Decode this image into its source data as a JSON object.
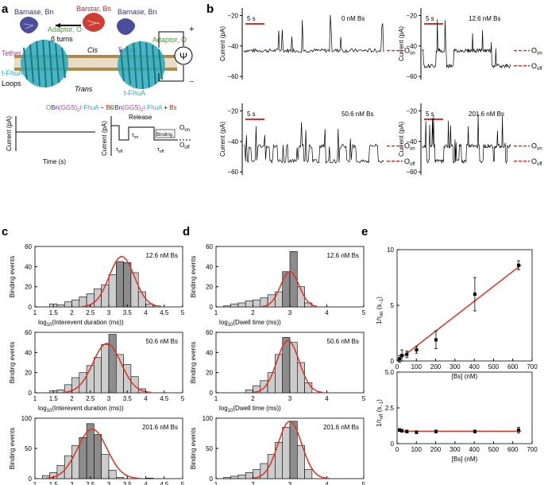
{
  "panel_labels": [
    "a",
    "b",
    "c",
    "d",
    "e"
  ],
  "schematic": {
    "barnase_left": "Barnase, Bn",
    "barstar": "Barstar, Bs",
    "barnase_right": "Barnase, Bn",
    "adaptor_left": "Adaptor, O",
    "adaptor_right": "Adaptor, O",
    "beta_turns": "β turns",
    "tether_left": "Tether",
    "tether_right": "Tether",
    "cis": "Cis",
    "trans": "Trans",
    "tfhua_left": "t-FhuA",
    "tfhua_right": "t-FhuA",
    "loops": "Loops",
    "psi": "Ψ",
    "plus": "+",
    "minus": "−"
  },
  "cartoons": {
    "left_title": [
      "OBn(GGS)",
      "2",
      "t-FhuA − Bs"
    ],
    "right_title": [
      "OBn(GGS)",
      "2",
      "t-FhuA + Bs"
    ],
    "ylabel": "Current (pA)",
    "xlabel": "Time (s)",
    "release": "Release",
    "binding": "Binding",
    "tau_on": [
      "τ",
      "on"
    ],
    "tau_off": [
      "τ",
      "off"
    ],
    "o_on": [
      "O",
      "on"
    ],
    "o_off": [
      "O",
      "off"
    ]
  },
  "colors": {
    "barnase": "#2b2e8c",
    "barstar": "#c8281e",
    "adaptor": "#4a9a2e",
    "tether": "#b23aa8",
    "fhua": "#2aa9b8",
    "fit": "#e03020",
    "bar_light": "#cccccc",
    "bar_dark": "#8c8c8c",
    "membrane": "#b08a4a"
  },
  "chart_data": [
    {
      "id": "b_traces",
      "type": "line",
      "ylabel": "Current (pA)",
      "yticks": [
        -20,
        -40,
        -60
      ],
      "ylim": [
        -62,
        -15
      ],
      "scalebar": "5 s",
      "levels": {
        "O_on": -43,
        "O_off": -53
      },
      "level_labels": [
        [
          "O",
          "on"
        ],
        [
          "O",
          "off"
        ]
      ],
      "traces": [
        {
          "label": "0 nM Bs",
          "base": -43,
          "states": 1
        },
        {
          "label": "12.6 nM Bs",
          "base": -43,
          "states": 2
        },
        {
          "label": "50.6 nM Bs",
          "base": -43,
          "states": 2
        },
        {
          "label": "201.6 nM Bs",
          "base": -43,
          "states": 2
        }
      ]
    },
    {
      "id": "c_hist",
      "type": "bar",
      "ylabel": "Binding events",
      "xlabel": [
        "log",
        "10",
        "(Interevent duration (ms))"
      ],
      "xlim": [
        1,
        5
      ],
      "xticks": [
        1,
        1.5,
        2,
        2.5,
        3,
        3.5,
        4,
        4.5,
        5
      ],
      "bin_width": 0.2,
      "panels": [
        {
          "label": "12.6 nM Bs",
          "ylim": [
            0,
            60
          ],
          "yticks": [
            0,
            20,
            40,
            60
          ],
          "bin_starts": [
            1.4,
            1.6,
            1.8,
            2.0,
            2.2,
            2.4,
            2.6,
            2.8,
            3.0,
            3.2,
            3.4,
            3.6,
            3.8,
            4.0,
            4.2
          ],
          "counts": [
            3,
            2,
            5,
            7,
            10,
            13,
            18,
            22,
            32,
            45,
            44,
            34,
            15,
            3,
            1
          ],
          "dark": [
            9,
            10
          ],
          "fit": {
            "mu": 3.35,
            "sigma": 0.34,
            "amp": 50
          }
        },
        {
          "label": "50.6 nM Bs",
          "ylim": [
            0,
            60
          ],
          "yticks": [
            0,
            20,
            40,
            60
          ],
          "bin_starts": [
            1.4,
            1.6,
            1.8,
            2.0,
            2.2,
            2.4,
            2.6,
            2.8,
            3.0,
            3.2,
            3.4,
            3.6,
            3.8
          ],
          "counts": [
            2,
            3,
            8,
            15,
            20,
            27,
            35,
            48,
            58,
            38,
            28,
            16,
            4
          ],
          "dark": [
            8
          ],
          "fit": {
            "mu": 2.95,
            "sigma": 0.38,
            "amp": 49
          }
        },
        {
          "label": "201.6 nM Bs",
          "ylim": [
            0,
            100
          ],
          "yticks": [
            0,
            50,
            100
          ],
          "bin_starts": [
            1.2,
            1.4,
            1.6,
            1.8,
            2.0,
            2.2,
            2.4,
            2.6,
            2.8,
            3.0,
            3.2,
            4.0
          ],
          "counts": [
            5,
            10,
            22,
            38,
            55,
            68,
            91,
            73,
            40,
            14,
            2,
            1
          ],
          "dark": [
            5,
            6,
            7
          ],
          "fit": {
            "mu": 2.55,
            "sigma": 0.4,
            "amp": 82
          }
        }
      ]
    },
    {
      "id": "d_hist",
      "type": "bar",
      "ylabel": "Binding events",
      "xlabel": [
        "log",
        "10",
        "(Dwell time (ms))"
      ],
      "xlim": [
        1,
        5
      ],
      "xticks": [
        1,
        2,
        3,
        4,
        5
      ],
      "bin_width": 0.2,
      "panels": [
        {
          "label": "12.6 nM Bs",
          "ylim": [
            0,
            60
          ],
          "yticks": [
            0,
            20,
            40,
            60
          ],
          "bin_starts": [
            1.2,
            1.4,
            1.6,
            1.8,
            2.0,
            2.2,
            2.4,
            2.6,
            2.8,
            3.0,
            3.2,
            3.4
          ],
          "counts": [
            1,
            3,
            4,
            6,
            7,
            9,
            12,
            15,
            35,
            55,
            20,
            4
          ],
          "dark": [
            8,
            9
          ],
          "fit": {
            "mu": 3.0,
            "sigma": 0.25,
            "amp": 35
          }
        },
        {
          "label": "50.6 nM Bs",
          "ylim": [
            0,
            60
          ],
          "yticks": [
            0,
            20,
            40,
            60
          ],
          "bin_starts": [
            1.8,
            2.0,
            2.2,
            2.4,
            2.6,
            2.8,
            3.0,
            3.2,
            3.4
          ],
          "counts": [
            3,
            7,
            12,
            20,
            38,
            55,
            50,
            30,
            10
          ],
          "dark": [
            5
          ],
          "fit": {
            "mu": 2.95,
            "sigma": 0.3,
            "amp": 52
          }
        },
        {
          "label": "201.6 nM Bs",
          "ylim": [
            0,
            100
          ],
          "yticks": [
            0,
            50,
            100
          ],
          "bin_starts": [
            1.2,
            1.4,
            1.6,
            1.8,
            2.0,
            2.2,
            2.4,
            2.6,
            2.8,
            3.0,
            3.2,
            3.4
          ],
          "counts": [
            2,
            4,
            6,
            10,
            15,
            25,
            40,
            60,
            85,
            95,
            55,
            15
          ],
          "dark": [
            9
          ],
          "fit": {
            "mu": 3.0,
            "sigma": 0.32,
            "amp": 95
          }
        }
      ]
    },
    {
      "id": "e_kon",
      "type": "scatter",
      "ylabel": [
        "1/τ",
        "on",
        " (s",
        "−1",
        ")"
      ],
      "xlabel": "[Bs] (nM)",
      "xlim": [
        0,
        700
      ],
      "ylim": [
        0,
        10
      ],
      "xticks": [
        0,
        100,
        200,
        300,
        400,
        500,
        600,
        700
      ],
      "yticks": [
        0,
        5,
        10
      ],
      "x": [
        12.6,
        25.2,
        50.6,
        100.8,
        201.6,
        403.2,
        630
      ],
      "y": [
        0.2,
        0.5,
        0.6,
        1.0,
        1.9,
        6.0,
        8.6
      ],
      "err": [
        0.3,
        0.5,
        0.3,
        0.3,
        0.8,
        1.5,
        0.4
      ],
      "fit": {
        "slope": 0.0134,
        "intercept": 0.0
      }
    },
    {
      "id": "e_koff",
      "type": "scatter",
      "ylabel": [
        "1/τ",
        "off",
        " (s",
        "−1",
        ")"
      ],
      "xlabel": "[Bs] (nM)",
      "xlim": [
        0,
        700
      ],
      "ylim": [
        0,
        5
      ],
      "xticks": [
        0,
        100,
        200,
        300,
        400,
        500,
        600,
        700
      ],
      "yticks": [
        0,
        2.5,
        5
      ],
      "ytick_labels": [
        "0",
        "2.5",
        "5.0"
      ],
      "x": [
        12.6,
        25.2,
        50.6,
        100.8,
        201.6,
        403.2,
        630
      ],
      "y": [
        0.95,
        0.9,
        0.85,
        0.8,
        0.85,
        0.85,
        0.95
      ],
      "err": [
        0.1,
        0.1,
        0.1,
        0.1,
        0.1,
        0.1,
        0.2
      ],
      "fit": {
        "slope": 0.0,
        "intercept": 0.87
      }
    }
  ]
}
